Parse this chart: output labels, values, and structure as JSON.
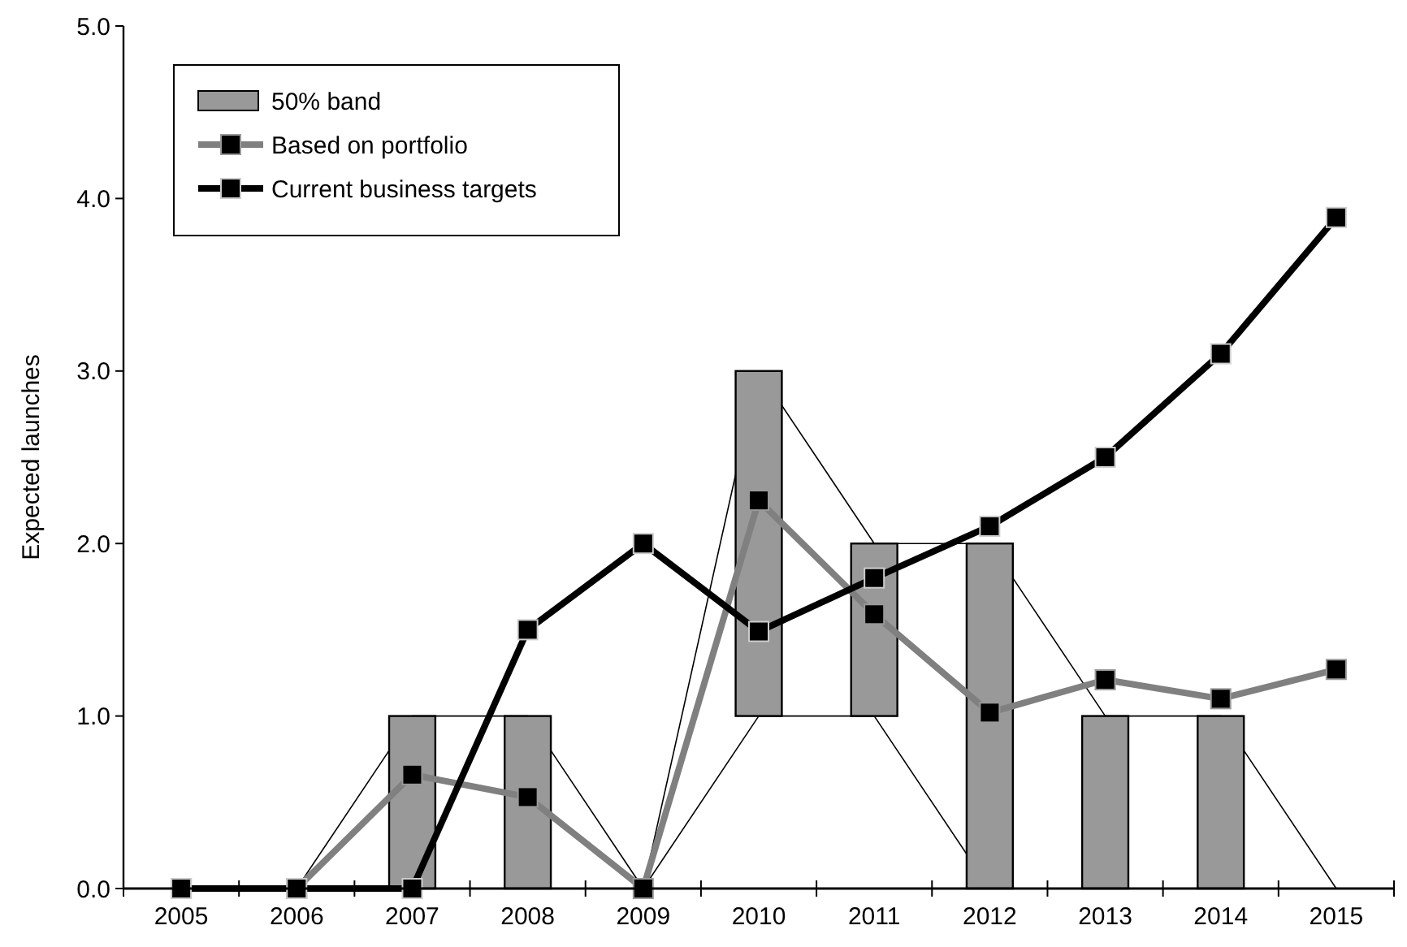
{
  "chart_data": {
    "type": "line",
    "ylabel": "Expected launches",
    "categories": [
      "2005",
      "2006",
      "2007",
      "2008",
      "2009",
      "2010",
      "2011",
      "2012",
      "2013",
      "2014",
      "2015"
    ],
    "ylim": [
      0,
      5
    ],
    "yticks": [
      {
        "value": 0,
        "label": "0.0"
      },
      {
        "value": 1,
        "label": "1.0"
      },
      {
        "value": 2,
        "label": "2.0"
      },
      {
        "value": 3,
        "label": "3.0"
      },
      {
        "value": 4,
        "label": "4.0"
      },
      {
        "value": 5,
        "label": "5.0"
      }
    ],
    "legend": "top left",
    "grid": false,
    "marker": "square",
    "series": [
      {
        "color": "#000000",
        "marker": "none",
        "values": [
          0,
          0,
          1,
          1,
          0,
          3,
          2,
          2,
          1,
          1,
          0
        ]
      },
      {
        "color": "#000000",
        "marker": "none",
        "values": [
          0,
          0,
          0,
          0,
          0,
          1,
          1,
          0,
          0,
          0,
          0
        ]
      },
      {
        "type": "bar",
        "name": "50% band",
        "color": "#999999",
        "base": [
          null,
          null,
          0,
          0,
          null,
          1,
          1,
          0,
          0,
          0,
          null
        ],
        "values": [
          null,
          null,
          1,
          1,
          null,
          2,
          1,
          2,
          1,
          1,
          null
        ]
      },
      {
        "name": "Based on portfolio",
        "color": "#808080",
        "values": [
          0,
          0,
          0.66,
          0.53,
          0,
          2.25,
          1.59,
          1.02,
          1.21,
          1.1,
          1.27
        ]
      },
      {
        "name": "Current business targets",
        "color": "#000000",
        "values": [
          0,
          0,
          0,
          1.5,
          2.0,
          1.49,
          1.8,
          2.1,
          2.5,
          3.1,
          3.89
        ]
      }
    ]
  }
}
